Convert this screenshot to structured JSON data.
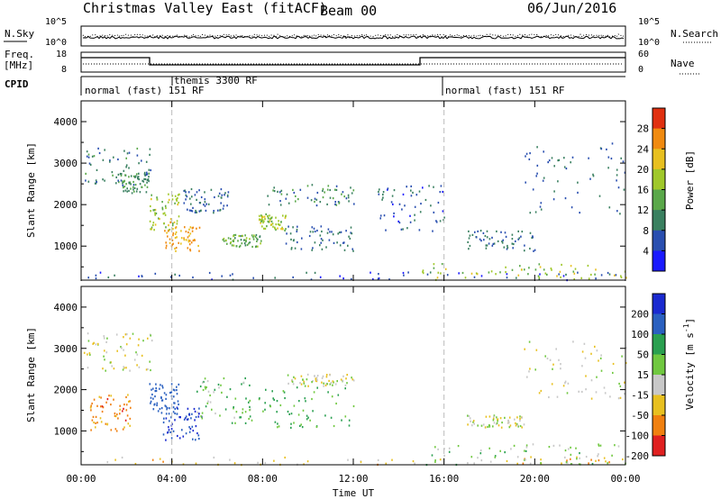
{
  "header": {
    "title": "Christmas Valley East (fitACF)",
    "beam": "Beam 00",
    "date": "06/Jun/2016"
  },
  "noise_panel": {
    "left_label": "N.Sky",
    "right_label": "N.Search",
    "left_ticks": [
      "10^5",
      "10^0"
    ],
    "right_ticks": [
      "10^5",
      "10^0"
    ]
  },
  "freq_panel": {
    "left_label_1": "Freq.",
    "left_label_2": "[MHz]",
    "right_label": "Nave",
    "left_ticks": [
      "18",
      "8"
    ],
    "right_ticks": [
      "60",
      "0"
    ]
  },
  "cpid": {
    "label": "CPID",
    "segments": [
      {
        "text": "normal (fast) 151 RF",
        "start_h": 0.0,
        "end_h": 3.8
      },
      {
        "text": "themis 3300 RF",
        "start_h": 3.8,
        "end_h": 16.0
      },
      {
        "text": "normal (fast) 151 RF",
        "start_h": 16.0,
        "end_h": 24.0
      }
    ]
  },
  "chart_data": [
    {
      "type": "heatmap",
      "ylabel": "Slant Range [km]",
      "y_ticks": [
        "1000",
        "2000",
        "3000",
        "4000"
      ],
      "y_values": [
        1000,
        2000,
        3000,
        4000
      ],
      "ylim": [
        180,
        4500
      ],
      "colorbar_label": "Power [dB]",
      "colorbar_ticks": [
        "4",
        "8",
        "12",
        "16",
        "20",
        "24",
        "28"
      ],
      "colorbar_values": [
        4,
        8,
        12,
        16,
        20,
        24,
        28
      ],
      "colorbar_range": [
        0,
        32
      ],
      "colors": [
        "#1a1aff",
        "#2a4fb0",
        "#3a8060",
        "#5aa84a",
        "#a0c82a",
        "#e8c020",
        "#f08a10",
        "#e03010"
      ],
      "features": [
        {
          "t0": 0.0,
          "t1": 24.0,
          "r0": 200,
          "r1": 400,
          "p": 6
        },
        {
          "t0": 0.1,
          "t1": 3.1,
          "r0": 2500,
          "r1": 3400,
          "p": 9
        },
        {
          "t0": 1.7,
          "t1": 3.0,
          "r0": 2300,
          "r1": 2800,
          "p": 11
        },
        {
          "t0": 3.0,
          "t1": 4.3,
          "r0": 1400,
          "r1": 2300,
          "p": 18
        },
        {
          "t0": 3.6,
          "t1": 5.2,
          "r0": 900,
          "r1": 1600,
          "p": 24
        },
        {
          "t0": 4.5,
          "t1": 6.5,
          "r0": 1800,
          "r1": 2400,
          "p": 8
        },
        {
          "t0": 6.2,
          "t1": 8.0,
          "r0": 1000,
          "r1": 1300,
          "p": 14
        },
        {
          "t0": 7.8,
          "t1": 9.0,
          "r0": 1400,
          "r1": 1800,
          "p": 18
        },
        {
          "t0": 8.2,
          "t1": 12.0,
          "r0": 2000,
          "r1": 2500,
          "p": 10
        },
        {
          "t0": 9.0,
          "t1": 12.0,
          "r0": 900,
          "r1": 1500,
          "p": 8
        },
        {
          "t0": 13.0,
          "t1": 16.0,
          "r0": 1300,
          "r1": 2500,
          "p": 6
        },
        {
          "t0": 17.0,
          "t1": 20.0,
          "r0": 900,
          "r1": 1400,
          "p": 8
        },
        {
          "t0": 15.0,
          "t1": 24.0,
          "r0": 200,
          "r1": 600,
          "p": 18
        },
        {
          "t0": 19.5,
          "t1": 24.0,
          "r0": 1800,
          "r1": 3500,
          "p": 8
        }
      ]
    },
    {
      "type": "heatmap",
      "ylabel": "Slant Range [km]",
      "y_ticks": [
        "1000",
        "2000",
        "3000",
        "4000"
      ],
      "y_values": [
        1000,
        2000,
        3000,
        4000
      ],
      "ylim": [
        180,
        4500
      ],
      "xlabel": "Time UT",
      "x_ticks": [
        "00:00",
        "04:00",
        "08:00",
        "12:00",
        "16:00",
        "20:00",
        "00:00"
      ],
      "x_values": [
        0,
        4,
        8,
        12,
        16,
        20,
        24
      ],
      "xlim": [
        0,
        24
      ],
      "colorbar_label": "Velocity [m s",
      "colorbar_ticks": [
        "200",
        "100",
        "50",
        "15",
        "-15",
        "-50",
        "-100",
        "-200"
      ],
      "colorbar_values": [
        200,
        100,
        50,
        15,
        -15,
        -50,
        -100,
        -200
      ],
      "colors": [
        "#1a2ad0",
        "#2a60c0",
        "#2aa050",
        "#70c840",
        "#c8c8c8",
        "#e8c020",
        "#f08010",
        "#e02020"
      ],
      "features": [
        {
          "t0": 0.0,
          "t1": 24.0,
          "r0": 200,
          "r1": 400,
          "v": -30
        },
        {
          "t0": 0.1,
          "t1": 3.1,
          "r0": 2400,
          "r1": 3400,
          "v": 0
        },
        {
          "t0": 0.3,
          "t1": 2.2,
          "r0": 1000,
          "r1": 1900,
          "v": -70
        },
        {
          "t0": 3.0,
          "t1": 4.3,
          "r0": 1400,
          "r1": 2200,
          "v": 150
        },
        {
          "t0": 3.6,
          "t1": 5.3,
          "r0": 800,
          "r1": 1600,
          "v": 200
        },
        {
          "t0": 5.0,
          "t1": 7.5,
          "r0": 1200,
          "r1": 2300,
          "v": 40
        },
        {
          "t0": 7.8,
          "t1": 12.0,
          "r0": 1100,
          "r1": 2100,
          "v": 60
        },
        {
          "t0": 9.0,
          "t1": 12.0,
          "r0": 2100,
          "r1": 2400,
          "v": 0
        },
        {
          "t0": 15.0,
          "t1": 24.0,
          "r0": 200,
          "r1": 700,
          "v": 30
        },
        {
          "t0": 17.0,
          "t1": 19.5,
          "r0": 1100,
          "r1": 1400,
          "v": 0
        },
        {
          "t0": 19.5,
          "t1": 24.0,
          "r0": 1800,
          "r1": 3200,
          "v": 0
        }
      ]
    }
  ]
}
